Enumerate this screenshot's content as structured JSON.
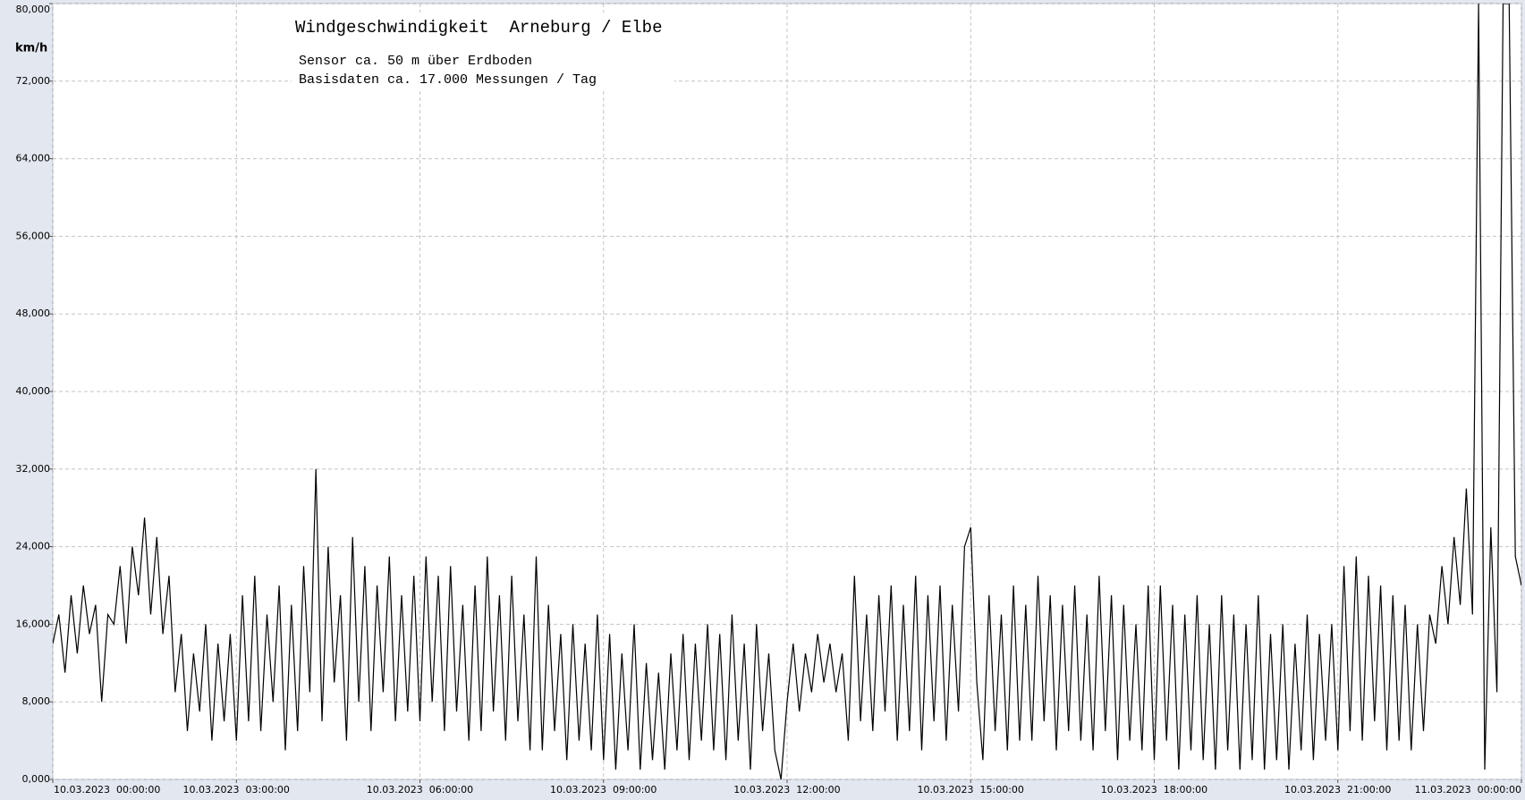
{
  "chart_data": {
    "type": "line",
    "title": "Windgeschwindigkeit  Arneburg / Elbe",
    "subtitle": [
      "Sensor ca. 50 m über Erdboden",
      "Basisdaten ca. 17.000 Messungen / Tag"
    ],
    "y_label": "km/h",
    "color": "#000000",
    "grid": true,
    "xlim": [
      0,
      24
    ],
    "ylim": [
      0,
      80
    ],
    "xticks": [
      {
        "value": 0,
        "label": "10.03.2023  00:00:00"
      },
      {
        "value": 3,
        "label": "10.03.2023  03:00:00"
      },
      {
        "value": 6,
        "label": "10.03.2023  06:00:00"
      },
      {
        "value": 9,
        "label": "10.03.2023  09:00:00"
      },
      {
        "value": 12,
        "label": "10.03.2023  12:00:00"
      },
      {
        "value": 15,
        "label": "10.03.2023  15:00:00"
      },
      {
        "value": 18,
        "label": "10.03.2023  18:00:00"
      },
      {
        "value": 21,
        "label": "10.03.2023  21:00:00"
      },
      {
        "value": 24,
        "label": "11.03.2023  00:00:00"
      }
    ],
    "yticks": [
      {
        "value": 0,
        "label": "0,000"
      },
      {
        "value": 8,
        "label": "8,000"
      },
      {
        "value": 16,
        "label": "16,000"
      },
      {
        "value": 24,
        "label": "24,000"
      },
      {
        "value": 32,
        "label": "32,000"
      },
      {
        "value": 40,
        "label": "40,000"
      },
      {
        "value": 48,
        "label": "48,000"
      },
      {
        "value": 56,
        "label": "56,000"
      },
      {
        "value": 64,
        "label": "64,000"
      },
      {
        "value": 72,
        "label": "72,000"
      },
      {
        "value": 80,
        "label": "80,000"
      }
    ],
    "x": [
      0,
      0.1,
      0.2,
      0.3,
      0.4,
      0.5,
      0.6,
      0.7,
      0.8,
      0.9,
      1,
      1.1,
      1.2,
      1.3,
      1.4,
      1.5,
      1.6,
      1.7,
      1.8,
      1.9,
      2,
      2.1,
      2.2,
      2.3,
      2.4,
      2.5,
      2.6,
      2.7,
      2.8,
      2.9,
      3,
      3.1,
      3.2,
      3.3,
      3.4,
      3.5,
      3.6,
      3.7,
      3.8,
      3.9,
      4,
      4.1,
      4.2,
      4.3,
      4.4,
      4.5,
      4.6,
      4.7,
      4.8,
      4.9,
      5,
      5.1,
      5.2,
      5.3,
      5.4,
      5.5,
      5.6,
      5.7,
      5.8,
      5.9,
      6,
      6.1,
      6.2,
      6.3,
      6.4,
      6.5,
      6.6,
      6.7,
      6.8,
      6.9,
      7,
      7.1,
      7.2,
      7.3,
      7.4,
      7.5,
      7.6,
      7.7,
      7.8,
      7.9,
      8,
      8.1,
      8.2,
      8.3,
      8.4,
      8.5,
      8.6,
      8.7,
      8.8,
      8.9,
      9,
      9.1,
      9.2,
      9.3,
      9.4,
      9.5,
      9.6,
      9.7,
      9.8,
      9.9,
      10,
      10.1,
      10.2,
      10.3,
      10.4,
      10.5,
      10.6,
      10.7,
      10.8,
      10.9,
      11,
      11.1,
      11.2,
      11.3,
      11.4,
      11.5,
      11.6,
      11.7,
      11.8,
      11.9,
      12,
      12.1,
      12.2,
      12.3,
      12.4,
      12.5,
      12.6,
      12.7,
      12.8,
      12.9,
      13,
      13.1,
      13.2,
      13.3,
      13.4,
      13.5,
      13.6,
      13.7,
      13.8,
      13.9,
      14,
      14.1,
      14.2,
      14.3,
      14.4,
      14.5,
      14.6,
      14.7,
      14.8,
      14.9,
      15,
      15.1,
      15.2,
      15.3,
      15.4,
      15.5,
      15.6,
      15.7,
      15.8,
      15.9,
      16,
      16.1,
      16.2,
      16.3,
      16.4,
      16.5,
      16.6,
      16.7,
      16.8,
      16.9,
      17,
      17.1,
      17.2,
      17.3,
      17.4,
      17.5,
      17.6,
      17.7,
      17.8,
      17.9,
      18,
      18.1,
      18.2,
      18.3,
      18.4,
      18.5,
      18.6,
      18.7,
      18.8,
      18.9,
      19,
      19.1,
      19.2,
      19.3,
      19.4,
      19.5,
      19.6,
      19.7,
      19.8,
      19.9,
      20,
      20.1,
      20.2,
      20.3,
      20.4,
      20.5,
      20.6,
      20.7,
      20.8,
      20.9,
      21,
      21.1,
      21.2,
      21.3,
      21.4,
      21.5,
      21.6,
      21.7,
      21.8,
      21.9,
      22,
      22.1,
      22.2,
      22.3,
      22.4,
      22.5,
      22.6,
      22.7,
      22.8,
      22.9,
      23,
      23.1,
      23.2,
      23.3,
      23.4,
      23.5,
      23.6,
      23.7,
      23.8,
      23.9,
      24
    ],
    "values": [
      14,
      17,
      11,
      19,
      13,
      20,
      15,
      18,
      8,
      17,
      16,
      22,
      14,
      24,
      19,
      27,
      17,
      25,
      15,
      21,
      9,
      15,
      5,
      13,
      7,
      16,
      4,
      14,
      6,
      15,
      4,
      19,
      6,
      21,
      5,
      17,
      8,
      20,
      3,
      18,
      5,
      22,
      9,
      32,
      6,
      24,
      10,
      19,
      4,
      25,
      8,
      22,
      5,
      20,
      9,
      23,
      6,
      19,
      7,
      21,
      6,
      23,
      8,
      21,
      5,
      22,
      7,
      18,
      4,
      20,
      5,
      23,
      7,
      19,
      4,
      21,
      6,
      17,
      3,
      23,
      3,
      18,
      5,
      15,
      2,
      16,
      4,
      14,
      3,
      17,
      2,
      15,
      1,
      13,
      3,
      16,
      1,
      12,
      2,
      11,
      1,
      13,
      3,
      15,
      2,
      14,
      4,
      16,
      3,
      15,
      2,
      17,
      4,
      14,
      1,
      16,
      5,
      13,
      3,
      0,
      8,
      14,
      7,
      13,
      9,
      15,
      10,
      14,
      9,
      13,
      4,
      21,
      6,
      17,
      5,
      19,
      7,
      20,
      4,
      18,
      5,
      21,
      3,
      19,
      6,
      20,
      4,
      18,
      7,
      24,
      26,
      10,
      2,
      19,
      5,
      17,
      3,
      20,
      4,
      18,
      4,
      21,
      6,
      19,
      3,
      18,
      5,
      20,
      4,
      17,
      3,
      21,
      5,
      19,
      2,
      18,
      4,
      16,
      3,
      20,
      2,
      20,
      4,
      18,
      1,
      17,
      3,
      19,
      2,
      16,
      1,
      19,
      3,
      17,
      1,
      16,
      2,
      19,
      1,
      15,
      2,
      16,
      1,
      14,
      3,
      17,
      2,
      15,
      4,
      16,
      3,
      22,
      5,
      23,
      4,
      21,
      6,
      20,
      3,
      19,
      4,
      18,
      3,
      16,
      5,
      17,
      14,
      22,
      16,
      25,
      18,
      30,
      17,
      80,
      1,
      26,
      9,
      80,
      80,
      23,
      20
    ]
  }
}
